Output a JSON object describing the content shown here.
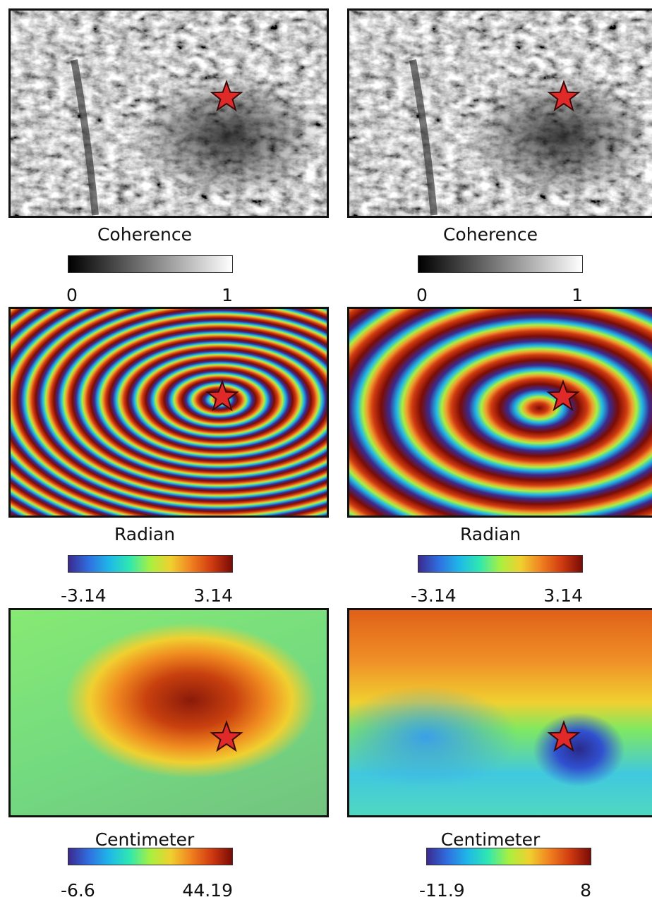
{
  "rows": [
    [
      {
        "label": "Coherence",
        "min": "0",
        "max": "1"
      },
      {
        "label": "Coherence",
        "min": "0",
        "max": "1"
      }
    ],
    [
      {
        "label": "Radian",
        "min": "-3.14",
        "max": "3.14"
      },
      {
        "label": "Radian",
        "min": "-3.14",
        "max": "3.14"
      }
    ],
    [
      {
        "label": "Centimeter",
        "min": "-6.6",
        "max": "44.19"
      },
      {
        "label": "Centimeter",
        "min": "-11.9",
        "max": "8"
      }
    ]
  ]
}
